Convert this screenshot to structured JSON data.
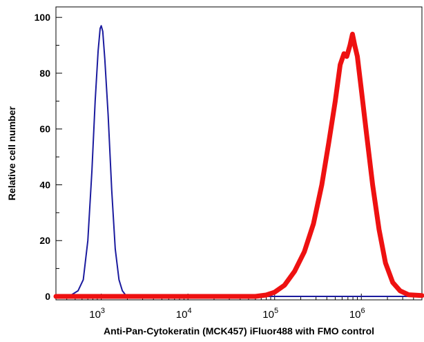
{
  "chart_data": {
    "type": "area",
    "title": "",
    "xlabel": "Anti-Pan-Cytokeratin (MCK457) iFluor488 with FMO control",
    "ylabel": "Relative cell number",
    "xscale": "log",
    "xlim": [
      300,
      5000000
    ],
    "ylim": [
      0,
      105
    ],
    "x_ticks": [
      {
        "base": "10",
        "exp": "3",
        "value": 1000
      },
      {
        "base": "10",
        "exp": "4",
        "value": 10000
      },
      {
        "base": "10",
        "exp": "5",
        "value": 100000
      },
      {
        "base": "10",
        "exp": "6",
        "value": 1000000
      }
    ],
    "y_ticks": [
      {
        "label": "0",
        "value": 0
      },
      {
        "label": "20",
        "value": 20
      },
      {
        "label": "40",
        "value": 40
      },
      {
        "label": "60",
        "value": 60
      },
      {
        "label": "80",
        "value": 80
      },
      {
        "label": "100",
        "value": 100
      }
    ],
    "grid": false,
    "legend": "none",
    "series": [
      {
        "color": "#1a1a9e",
        "style": "thin-line",
        "points": [
          [
            300,
            0
          ],
          [
            450,
            0.5
          ],
          [
            540,
            2
          ],
          [
            620,
            6
          ],
          [
            700,
            20
          ],
          [
            780,
            45
          ],
          [
            850,
            70
          ],
          [
            920,
            88
          ],
          [
            970,
            96
          ],
          [
            1000,
            97
          ],
          [
            1040,
            95
          ],
          [
            1100,
            85
          ],
          [
            1200,
            65
          ],
          [
            1320,
            38
          ],
          [
            1450,
            17
          ],
          [
            1600,
            6
          ],
          [
            1750,
            2
          ],
          [
            1900,
            0.6
          ],
          [
            2100,
            0
          ],
          [
            5000000,
            0
          ]
        ]
      },
      {
        "color": "#ee1111",
        "style": "thick-line",
        "points": [
          [
            300,
            0
          ],
          [
            60000,
            0
          ],
          [
            80000,
            0.5
          ],
          [
            100000,
            1.5
          ],
          [
            130000,
            4
          ],
          [
            170000,
            9
          ],
          [
            220000,
            16
          ],
          [
            280000,
            26
          ],
          [
            350000,
            40
          ],
          [
            420000,
            55
          ],
          [
            500000,
            70
          ],
          [
            570000,
            83
          ],
          [
            630000,
            87
          ],
          [
            680000,
            86
          ],
          [
            740000,
            90
          ],
          [
            790000,
            94
          ],
          [
            840000,
            90
          ],
          [
            900000,
            86
          ],
          [
            1000000,
            74
          ],
          [
            1150000,
            58
          ],
          [
            1350000,
            40
          ],
          [
            1600000,
            24
          ],
          [
            1900000,
            12
          ],
          [
            2300000,
            5
          ],
          [
            2800000,
            2
          ],
          [
            3500000,
            0.6
          ],
          [
            5000000,
            0.3
          ]
        ]
      }
    ]
  }
}
